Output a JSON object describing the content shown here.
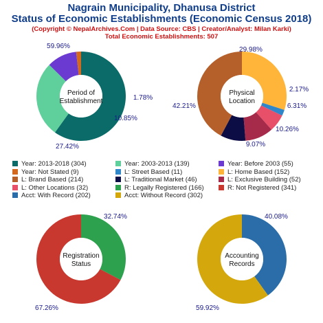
{
  "header": {
    "title_line1": "Nagrain Municipality, Dhanusa District",
    "title_line2": "Status of Economic Establishments (Economic Census 2018)",
    "credits": "(Copyright © NepalArchives.Com | Data Source: CBS | Creator/Analyst: Milan Karki)",
    "total": "Total Economic Establishments: 507"
  },
  "chart_data": [
    {
      "type": "pie",
      "title": "Period of Establishment",
      "center_lines": [
        "Period of",
        "Establishment"
      ],
      "slices": [
        {
          "label": "Year: 2013-2018",
          "count": 304,
          "percent": 59.96,
          "percent_label": "59.96%",
          "color": "#0a6b68"
        },
        {
          "label": "Year: 2003-2013",
          "count": 139,
          "percent": 27.42,
          "percent_label": "27.42%",
          "color": "#5fd09b"
        },
        {
          "label": "Year: Before 2003",
          "count": 55,
          "percent": 10.85,
          "percent_label": "10.85%",
          "color": "#6a3ad1"
        },
        {
          "label": "Year: Not Stated",
          "count": 9,
          "percent": 1.78,
          "percent_label": "1.78%",
          "color": "#d2691e"
        }
      ]
    },
    {
      "type": "pie",
      "title": "Physical Location",
      "center_lines": [
        "Physical",
        "Location"
      ],
      "slices": [
        {
          "label": "L: Home Based",
          "count": 152,
          "percent": 29.98,
          "percent_label": "29.98%",
          "color": "#ffb43a"
        },
        {
          "label": "L: Street Based",
          "count": 11,
          "percent": 2.17,
          "percent_label": "2.17%",
          "color": "#2f86c8"
        },
        {
          "label": "L: Other Locations",
          "count": 32,
          "percent": 6.31,
          "percent_label": "6.31%",
          "color": "#e8506a"
        },
        {
          "label": "L: Exclusive Building",
          "count": 52,
          "percent": 10.26,
          "percent_label": "10.26%",
          "color": "#a62a4a"
        },
        {
          "label": "L: Traditional Market",
          "count": 46,
          "percent": 9.07,
          "percent_label": "9.07%",
          "color": "#0d0d45"
        },
        {
          "label": "L: Brand Based",
          "count": 214,
          "percent": 42.21,
          "percent_label": "42.21%",
          "color": "#b5602a"
        }
      ]
    },
    {
      "type": "pie",
      "title": "Registration Status",
      "center_lines": [
        "Registration",
        "Status"
      ],
      "slices": [
        {
          "label": "R: Legally Registered",
          "count": 166,
          "percent": 32.74,
          "percent_label": "32.74%",
          "color": "#2ea14f"
        },
        {
          "label": "R: Not Registered",
          "count": 341,
          "percent": 67.26,
          "percent_label": "67.26%",
          "color": "#c8382e"
        }
      ]
    },
    {
      "type": "pie",
      "title": "Accounting Records",
      "center_lines": [
        "Accounting",
        "Records"
      ],
      "slices": [
        {
          "label": "Acct: With Record",
          "count": 202,
          "percent": 40.08,
          "percent_label": "40.08%",
          "color": "#2b6da8"
        },
        {
          "label": "Acct: Without Record",
          "count": 302,
          "percent": 59.92,
          "percent_label": "59.92%",
          "color": "#d4a80d"
        }
      ]
    }
  ],
  "legend": [
    {
      "text": "Year: 2013-2018 (304)",
      "color": "#0a6b68"
    },
    {
      "text": "Year: 2003-2013 (139)",
      "color": "#5fd09b"
    },
    {
      "text": "Year: Before 2003 (55)",
      "color": "#6a3ad1"
    },
    {
      "text": "Year: Not Stated (9)",
      "color": "#d2691e"
    },
    {
      "text": "L: Street Based (11)",
      "color": "#2f86c8"
    },
    {
      "text": "L: Home Based (152)",
      "color": "#ffb43a"
    },
    {
      "text": "L: Brand Based (214)",
      "color": "#b5602a"
    },
    {
      "text": "L: Traditional Market (46)",
      "color": "#0d0d45"
    },
    {
      "text": "L: Exclusive Building (52)",
      "color": "#a62a4a"
    },
    {
      "text": "L: Other Locations (32)",
      "color": "#e8506a"
    },
    {
      "text": "R: Legally Registered (166)",
      "color": "#2ea14f"
    },
    {
      "text": "R: Not Registered (341)",
      "color": "#c8382e"
    },
    {
      "text": "Acct: With Record (202)",
      "color": "#2b6da8"
    },
    {
      "text": "Acct: Without Record (302)",
      "color": "#d4a80d"
    }
  ]
}
